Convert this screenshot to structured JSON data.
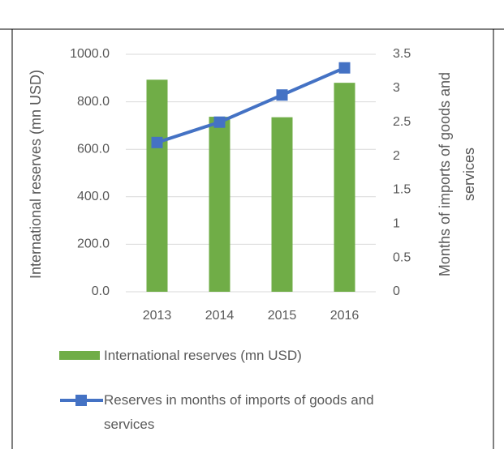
{
  "chart_data": {
    "type": "bar",
    "ylabel": "International reserves (mn USD)",
    "y2label": "Months of imports of goods and services",
    "categories": [
      "2013",
      "2014",
      "2015",
      "2016"
    ],
    "series": [
      {
        "name": "International reserves (mn USD)",
        "type": "bar",
        "color": "#70ad47",
        "values": [
          893,
          737,
          735,
          880
        ]
      },
      {
        "name": "Reserves in months of imports of goods and services",
        "type": "line",
        "axis": "y2",
        "color": "#4472c4",
        "values": [
          2.2,
          2.5,
          2.9,
          3.3
        ]
      }
    ],
    "ylim": [
      0,
      1000
    ],
    "yticks": [
      {
        "value": 0,
        "label": "0.0"
      },
      {
        "value": 200,
        "label": "200.0"
      },
      {
        "value": 400,
        "label": "400.0"
      },
      {
        "value": 600,
        "label": "600.0"
      },
      {
        "value": 800,
        "label": "800.0"
      },
      {
        "value": 1000,
        "label": "1000.0"
      }
    ],
    "y2lim": [
      0,
      3.5
    ],
    "y2ticks": [
      0,
      0.5,
      1,
      1.5,
      2,
      2.5,
      3,
      3.5
    ],
    "grid": true
  }
}
